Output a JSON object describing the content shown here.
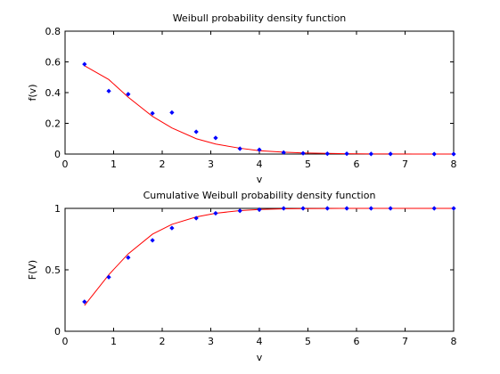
{
  "colors": {
    "model": "#ff0000",
    "samples": "#0000ff",
    "axes": "#000000",
    "background": "#ffffff"
  },
  "chart_data": [
    {
      "type": "line",
      "title": "Weibull probability density function",
      "xlabel": "v",
      "ylabel": "f(v)",
      "xlim": [
        0,
        8
      ],
      "ylim": [
        0,
        0.8
      ],
      "xticks": [
        "0",
        "1",
        "2",
        "3",
        "4",
        "5",
        "6",
        "7",
        "8"
      ],
      "yticks": [
        "0",
        "0.2",
        "0.4",
        "0.6",
        "0.8"
      ],
      "grid": false,
      "series": [
        {
          "style": "line",
          "color": "#ff0000",
          "x": [
            0.4,
            0.9,
            1.3,
            1.8,
            2.2,
            2.7,
            3.1,
            3.6,
            4.0,
            4.5,
            4.9,
            5.4,
            5.8,
            6.3,
            6.7,
            7.2,
            7.6,
            8.0
          ],
          "y": [
            0.575,
            0.485,
            0.37,
            0.245,
            0.17,
            0.1,
            0.065,
            0.038,
            0.022,
            0.012,
            0.007,
            0.004,
            0.002,
            0.001,
            0.001,
            0.0,
            0.0,
            0.0
          ]
        },
        {
          "style": "markers",
          "color": "#0000ff",
          "x": [
            0.4,
            0.9,
            1.3,
            1.8,
            2.2,
            2.7,
            3.1,
            3.6,
            4.0,
            4.5,
            4.9,
            5.4,
            5.8,
            6.3,
            6.7,
            7.6,
            8.0
          ],
          "y": [
            0.585,
            0.41,
            0.39,
            0.265,
            0.27,
            0.145,
            0.105,
            0.035,
            0.028,
            0.01,
            0.005,
            0.002,
            0.002,
            0.001,
            0.001,
            0.0,
            0.0
          ]
        }
      ]
    },
    {
      "type": "line",
      "title": "Cumulative Weibull probability density function",
      "xlabel": "v",
      "ylabel": "F(V)",
      "xlim": [
        0,
        8
      ],
      "ylim": [
        0,
        1
      ],
      "xticks": [
        "0",
        "1",
        "2",
        "3",
        "4",
        "5",
        "6",
        "7",
        "8"
      ],
      "yticks": [
        "0",
        "0.5",
        "1"
      ],
      "grid": false,
      "series": [
        {
          "style": "line",
          "color": "#ff0000",
          "x": [
            0.4,
            0.9,
            1.3,
            1.8,
            2.2,
            2.7,
            3.1,
            3.6,
            4.0,
            4.5,
            4.9,
            5.4,
            5.8,
            6.3,
            6.7,
            7.2,
            7.6,
            8.0
          ],
          "y": [
            0.21,
            0.46,
            0.63,
            0.79,
            0.87,
            0.93,
            0.96,
            0.982,
            0.991,
            0.996,
            0.998,
            0.999,
            1.0,
            1.0,
            1.0,
            1.0,
            1.0,
            1.0
          ]
        },
        {
          "style": "markers",
          "color": "#0000ff",
          "x": [
            0.4,
            0.9,
            1.3,
            1.8,
            2.2,
            2.7,
            3.1,
            3.6,
            4.0,
            4.5,
            4.9,
            5.4,
            5.8,
            6.3,
            6.7,
            7.6,
            8.0
          ],
          "y": [
            0.24,
            0.44,
            0.6,
            0.74,
            0.84,
            0.92,
            0.96,
            0.98,
            0.99,
            1.0,
            1.0,
            1.0,
            1.0,
            1.0,
            1.0,
            1.0,
            1.0
          ]
        }
      ]
    }
  ]
}
